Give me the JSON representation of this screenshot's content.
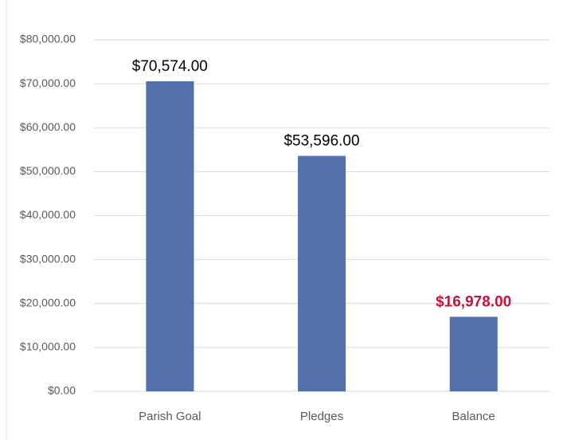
{
  "chart_data": {
    "type": "bar",
    "categories": [
      "Parish Goal",
      "Pledges",
      "Balance"
    ],
    "values": [
      70574,
      53596,
      16978
    ],
    "value_labels": [
      "$70,574.00",
      "$53,596.00",
      "$16,978.00"
    ],
    "value_label_colors": [
      "#000000",
      "#000000",
      "#c0143c"
    ],
    "color": "#5470ab",
    "ylim": [
      0,
      80000
    ],
    "yticks": [
      {
        "value": 0,
        "label": "$0.00"
      },
      {
        "value": 10000,
        "label": "$10,000.00"
      },
      {
        "value": 20000,
        "label": "$20,000.00"
      },
      {
        "value": 30000,
        "label": "$30,000.00"
      },
      {
        "value": 40000,
        "label": "$40,000.00"
      },
      {
        "value": 50000,
        "label": "$50,000.00"
      },
      {
        "value": 60000,
        "label": "$60,000.00"
      },
      {
        "value": 70000,
        "label": "$70,000.00"
      },
      {
        "value": 80000,
        "label": "$80,000.00"
      }
    ],
    "grid": true
  }
}
